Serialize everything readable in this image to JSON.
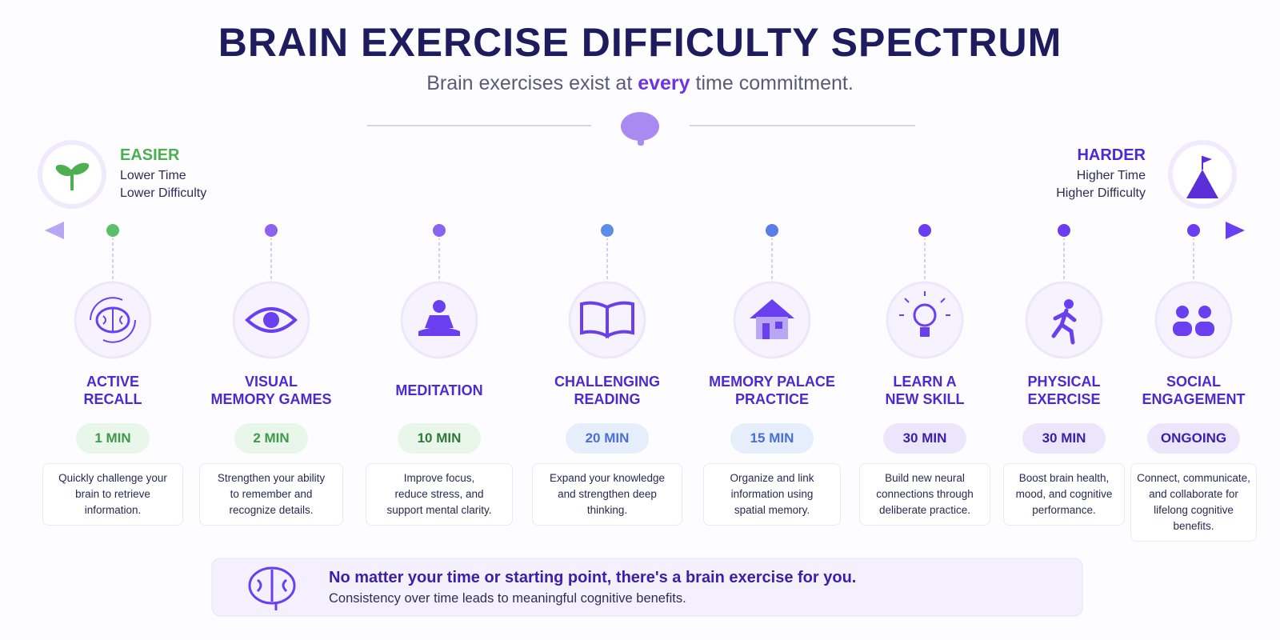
{
  "header": {
    "title": "BRAIN EXERCISE DIFFICULTY SPECTRUM",
    "subtitle": [
      "Brain exercises exist at ",
      "every",
      " time commitment."
    ]
  },
  "easier": {
    "label": "EASIER",
    "lines": [
      "Lower Time",
      "Lower Difficulty"
    ]
  },
  "harder": {
    "label": "HARDER",
    "lines": [
      "Higher Time",
      "Higher Difficulty"
    ]
  },
  "items": [
    {
      "title": [
        "ACTIVE",
        "RECALL"
      ],
      "time": "1 MIN",
      "description": [
        "Quickly challenge your",
        "brain to retrieve",
        "information."
      ]
    },
    {
      "title": [
        "VISUAL",
        "MEMORY GAMES"
      ],
      "time": "2 MIN",
      "description": [
        "Strengthen your ability",
        "to remember and",
        "recognize details."
      ]
    },
    {
      "title": [
        "MEDITATION"
      ],
      "time": "10 MIN",
      "description": [
        "Improve focus,",
        "reduce stress, and",
        "support mental clarity."
      ]
    },
    {
      "title": [
        "CHALLENGING",
        "READING"
      ],
      "time": "20 MIN",
      "description": [
        "Expand your knowledge",
        "and strengthen deep",
        "thinking."
      ]
    },
    {
      "title": [
        "MEMORY PALACE",
        "PRACTICE"
      ],
      "time": "15 MIN",
      "description": [
        "Organize and link",
        "information using",
        "spatial memory."
      ]
    },
    {
      "title": [
        "LEARN A",
        "NEW SKILL"
      ],
      "time": "30 MIN",
      "description": [
        "Build new neural",
        "connections through",
        "deliberate practice."
      ]
    },
    {
      "title": [
        "PHYSICAL",
        "EXERCISE"
      ],
      "time": "30 MIN",
      "description": [
        "Boost brain health,",
        "mood, and cognitive",
        "performance."
      ]
    },
    {
      "title": [
        "SOCIAL",
        "ENGAGEMENT"
      ],
      "time": "ONGOING",
      "description": [
        "Connect, communicate,",
        "and collaborate for",
        "lifelong cognitive",
        "benefits."
      ]
    }
  ],
  "footer": {
    "headline": "No matter your time or starting point, there's a brain exercise for you.",
    "text": "Consistency over time leads to meaningful cognitive benefits."
  }
}
